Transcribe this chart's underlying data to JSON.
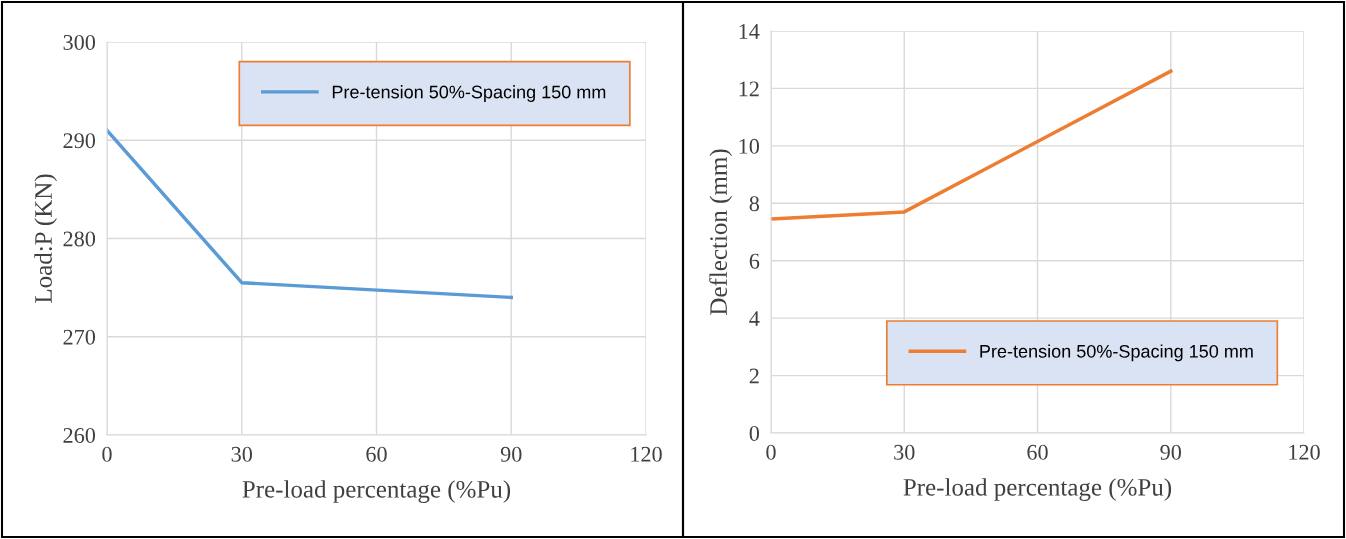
{
  "chart_data": [
    {
      "type": "line",
      "xlabel": "Pre-load percentage (%Pu)",
      "ylabel": "Load:P (KN)",
      "x": [
        0,
        30,
        90
      ],
      "series": [
        {
          "name": "Pre-tension 50%-Spacing 150 mm",
          "color": "#5b9bd5",
          "values": [
            291,
            275.5,
            274
          ]
        }
      ],
      "xlim": [
        0,
        120
      ],
      "xticks": [
        0,
        30,
        60,
        90,
        120
      ],
      "ylim": [
        260,
        300
      ],
      "yticks": [
        260,
        270,
        280,
        290,
        300
      ],
      "grid": true,
      "legend": "top right"
    },
    {
      "type": "line",
      "xlabel": "Pre-load percentage (%Pu)",
      "ylabel": "Deflection (mm)",
      "x": [
        0,
        30,
        90
      ],
      "series": [
        {
          "name": "Pre-tension 50%-Spacing 150 mm",
          "color": "#ed7d31",
          "values": [
            7.45,
            7.7,
            12.6
          ]
        }
      ],
      "xlim": [
        0,
        120
      ],
      "xticks": [
        0,
        30,
        60,
        90,
        120
      ],
      "ylim": [
        0,
        14
      ],
      "yticks": [
        0,
        2,
        4,
        6,
        8,
        10,
        12,
        14
      ],
      "grid": true,
      "legend": "bottom right"
    }
  ]
}
